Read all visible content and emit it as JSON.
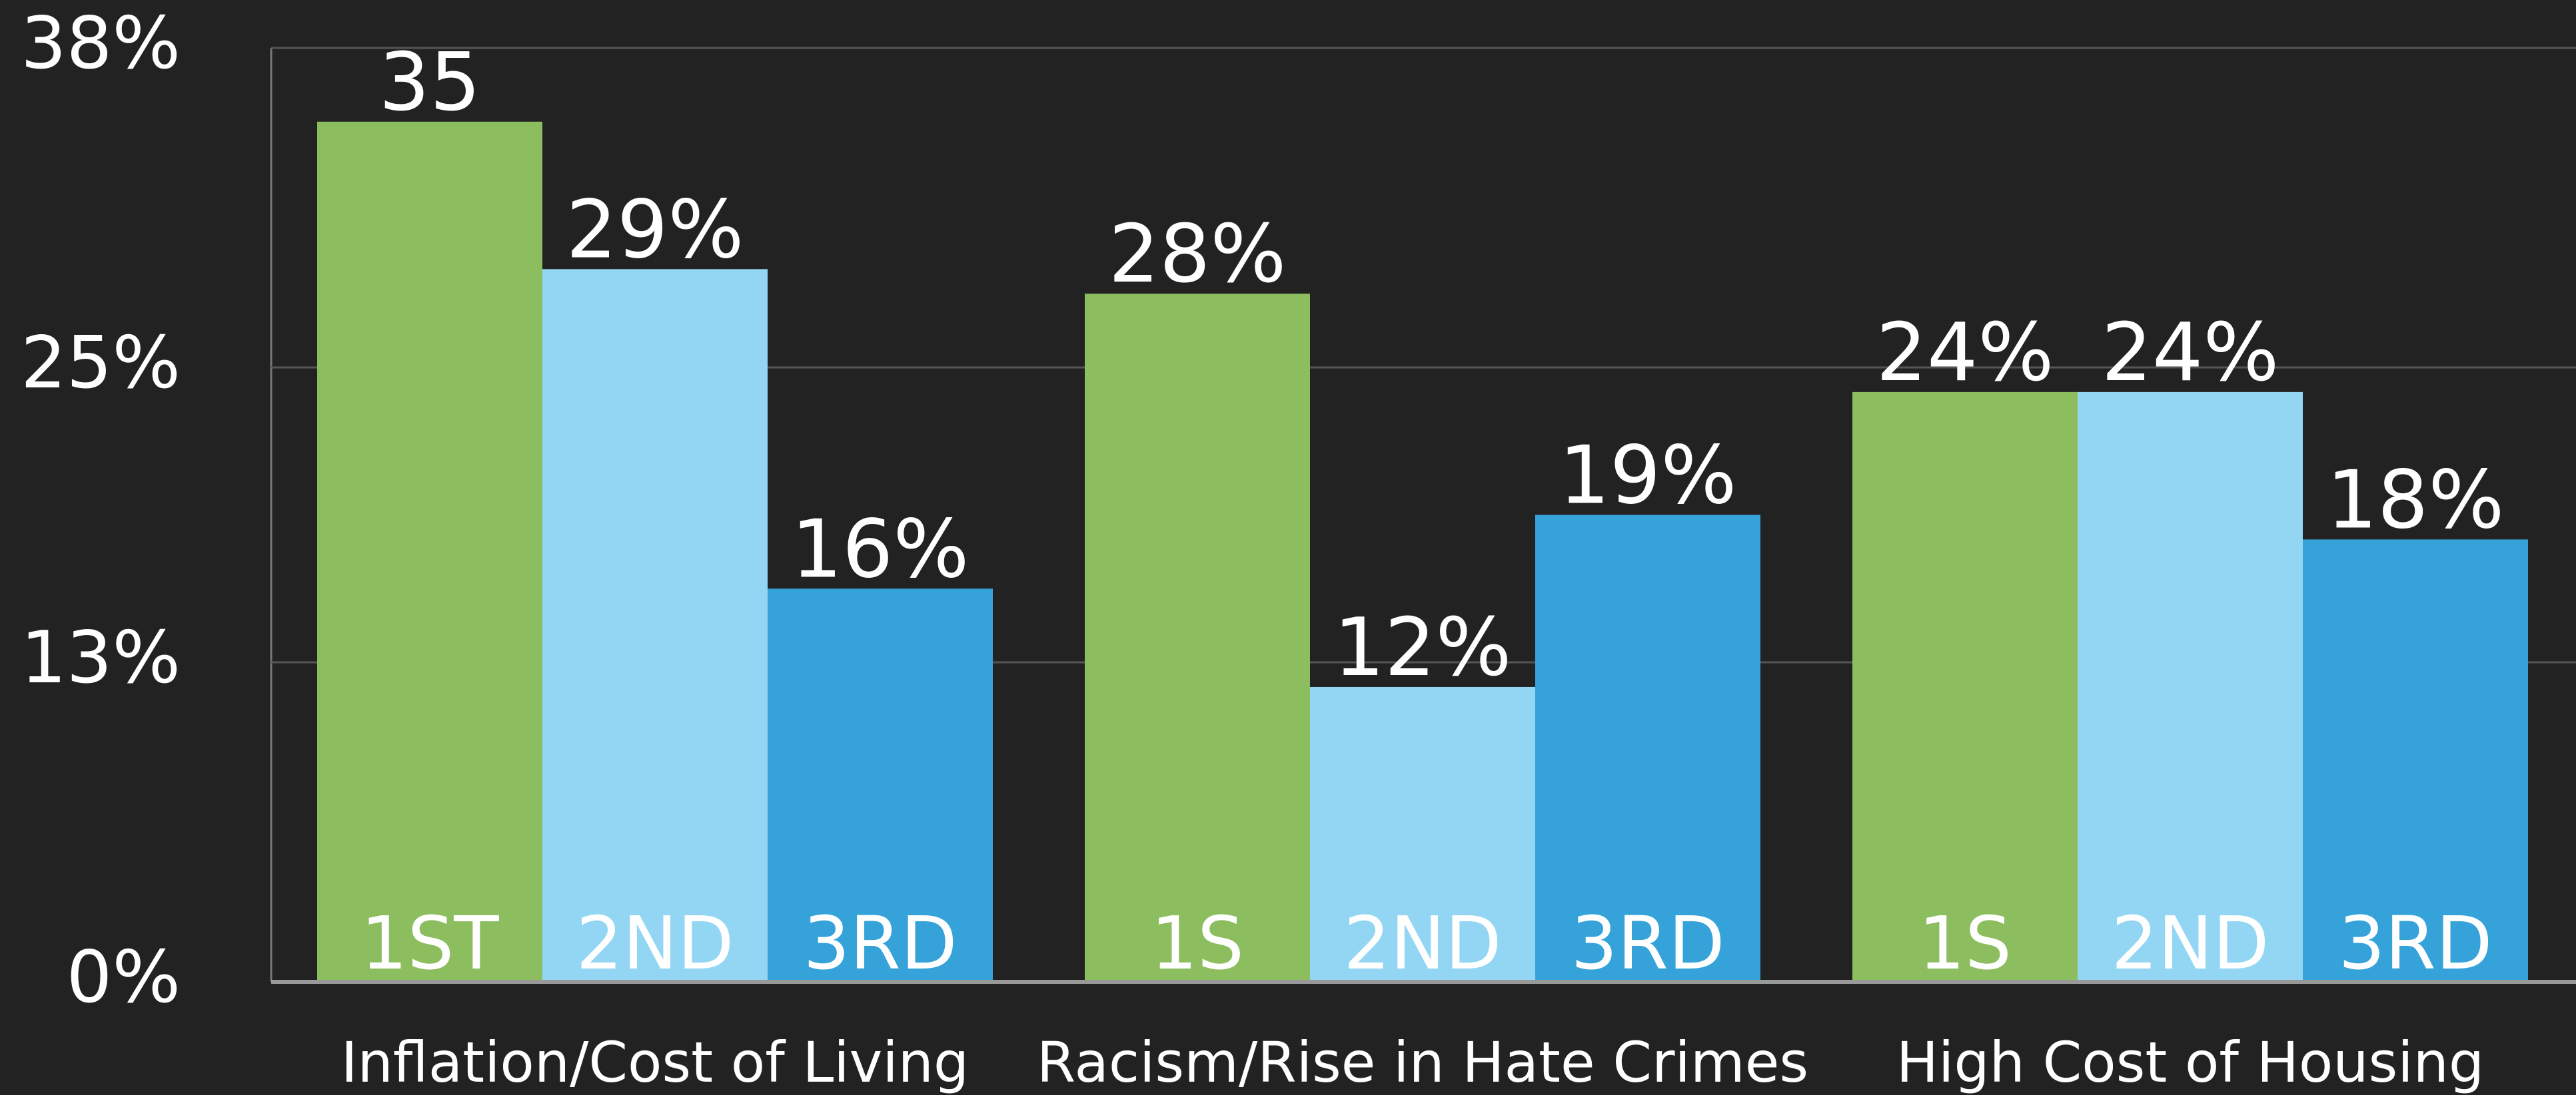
{
  "chart_data": {
    "type": "bar",
    "categories": [
      "Inflation/Cost of Living",
      "Racism/Rise in Hate Crimes",
      "High Cost of Housing"
    ],
    "series": [
      {
        "name": "1ST",
        "color": "#8cbd5e",
        "values": [
          35,
          28,
          24
        ],
        "value_labels": [
          "35",
          "28%",
          "24%"
        ],
        "bar_labels": [
          "1ST",
          "1S",
          "1S"
        ]
      },
      {
        "name": "2ND",
        "color": "#93d6f4",
        "values": [
          29,
          12,
          24
        ],
        "value_labels": [
          "29%",
          "12%",
          "24%"
        ],
        "bar_labels": [
          "2ND",
          "2ND",
          "2ND"
        ]
      },
      {
        "name": "3RD",
        "color": "#35a3da",
        "values": [
          16,
          19,
          18
        ],
        "value_labels": [
          "16%",
          "19%",
          "18%"
        ],
        "bar_labels": [
          "3RD",
          "3RD",
          "3RD"
        ]
      }
    ],
    "ylim": [
      0,
      38
    ],
    "yticks": [
      {
        "value": 0,
        "label": "0%"
      },
      {
        "value": 13,
        "label": "13%"
      },
      {
        "value": 25,
        "label": "25%"
      },
      {
        "value": 38,
        "label": "38%"
      }
    ],
    "grid": true
  }
}
